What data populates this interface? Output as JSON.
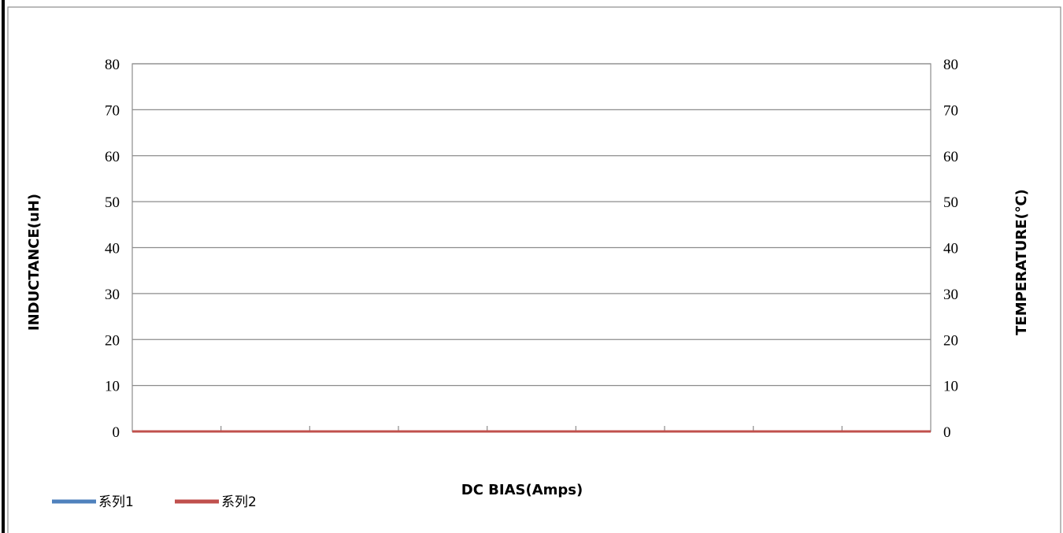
{
  "chart_data": {
    "type": "line",
    "title": "",
    "xlabel": "DC BIAS(Amps)",
    "ylabel": "INDUCTANCE(uH)",
    "y2label": "TEMPERATURE(℃)",
    "ylim": [
      0,
      80
    ],
    "y2lim": [
      0,
      80
    ],
    "yticks": [
      0,
      10,
      20,
      30,
      40,
      50,
      60,
      70,
      80
    ],
    "y2ticks": [
      0,
      10,
      20,
      30,
      40,
      50,
      60,
      70,
      80
    ],
    "x_categories": 9,
    "x": [
      1,
      2,
      3,
      4,
      5,
      6,
      7,
      8,
      9
    ],
    "grid": true,
    "legend_position": "bottom-left",
    "series": [
      {
        "name": "系列1",
        "color": "#4f81bd",
        "axis": "left",
        "values": [
          0,
          0,
          0,
          0,
          0,
          0,
          0,
          0,
          0
        ]
      },
      {
        "name": "系列2",
        "color": "#c0504d",
        "axis": "right",
        "values": [
          0,
          0,
          0,
          0,
          0,
          0,
          0,
          0,
          0
        ]
      }
    ]
  }
}
